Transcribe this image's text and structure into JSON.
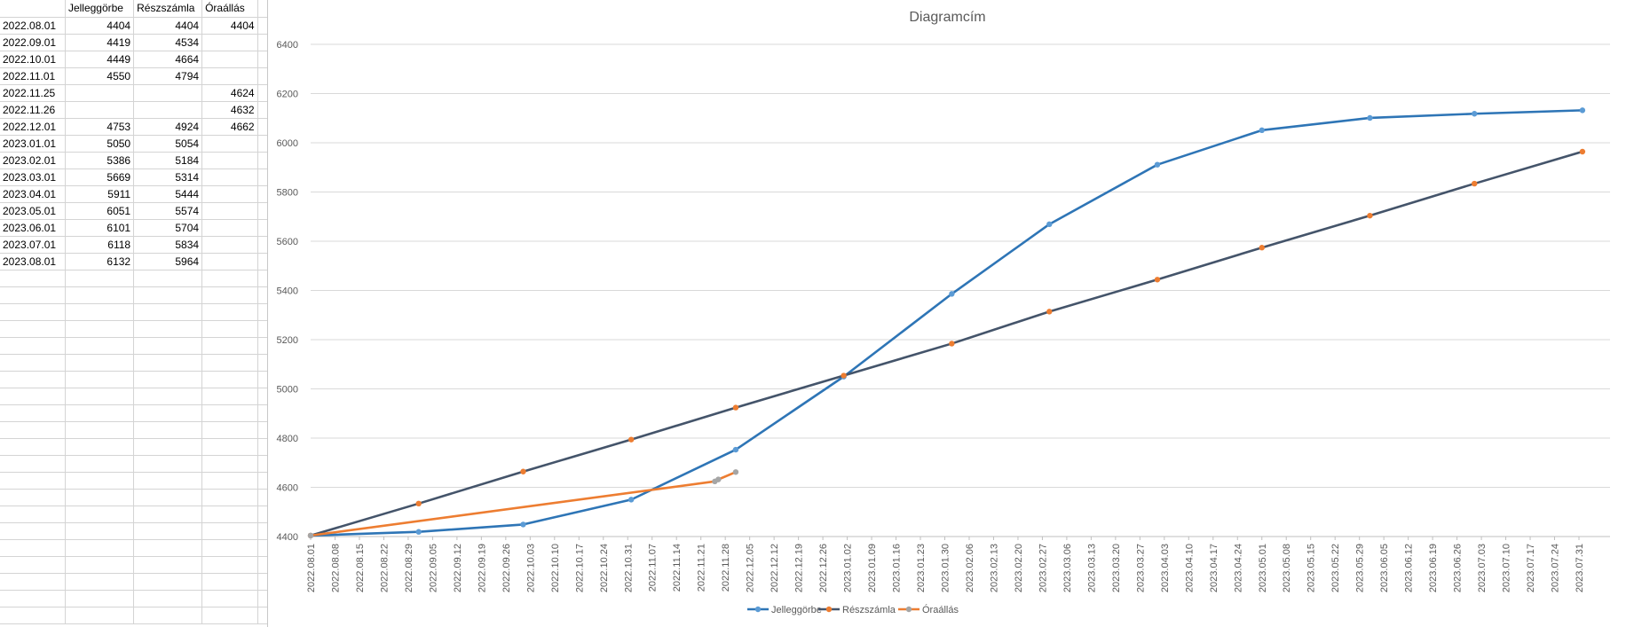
{
  "sheet": {
    "headers": [
      "",
      "Jelleggörbe",
      "Részszámla",
      "Óraállás"
    ],
    "rows": [
      [
        "2022.08.01",
        "4404",
        "4404",
        "4404"
      ],
      [
        "2022.09.01",
        "4419",
        "4534",
        ""
      ],
      [
        "2022.10.01",
        "4449",
        "4664",
        ""
      ],
      [
        "2022.11.01",
        "4550",
        "4794",
        ""
      ],
      [
        "2022.11.25",
        "",
        "",
        "4624"
      ],
      [
        "2022.11.26",
        "",
        "",
        "4632"
      ],
      [
        "2022.12.01",
        "4753",
        "4924",
        "4662"
      ],
      [
        "2023.01.01",
        "5050",
        "5054",
        ""
      ],
      [
        "2023.02.01",
        "5386",
        "5184",
        ""
      ],
      [
        "2023.03.01",
        "5669",
        "5314",
        ""
      ],
      [
        "2023.04.01",
        "5911",
        "5444",
        ""
      ],
      [
        "2023.05.01",
        "6051",
        "5574",
        ""
      ],
      [
        "2023.06.01",
        "6101",
        "5704",
        ""
      ],
      [
        "2023.07.01",
        "6118",
        "5834",
        ""
      ],
      [
        "2023.08.01",
        "6132",
        "5964",
        ""
      ]
    ]
  },
  "chart_data": {
    "type": "line",
    "title": "Diagramcím",
    "xlabel": "",
    "ylabel": "",
    "ylim": [
      4400,
      6400
    ],
    "yticks": [
      4400,
      4600,
      4800,
      5000,
      5200,
      5400,
      5600,
      5800,
      6000,
      6200,
      6400
    ],
    "xlim": [
      "2022.08.01",
      "2023.07.31"
    ],
    "xtick_step_days": 7,
    "grid": "horizontal",
    "legend": "bottom",
    "series": [
      {
        "name": "Jelleggörbe",
        "line_color": "#2e75b6",
        "marker_color": "#5b9bd5",
        "x": [
          "2022.08.01",
          "2022.09.01",
          "2022.10.01",
          "2022.11.01",
          "2022.12.01",
          "2023.01.01",
          "2023.02.01",
          "2023.03.01",
          "2023.04.01",
          "2023.05.01",
          "2023.06.01",
          "2023.07.01",
          "2023.08.01"
        ],
        "values": [
          4404,
          4419,
          4449,
          4550,
          4753,
          5050,
          5386,
          5669,
          5911,
          6051,
          6101,
          6118,
          6132
        ]
      },
      {
        "name": "Részszámla",
        "line_color": "#44546a",
        "marker_color": "#ed7d31",
        "x": [
          "2022.08.01",
          "2022.09.01",
          "2022.10.01",
          "2022.11.01",
          "2022.12.01",
          "2023.01.01",
          "2023.02.01",
          "2023.03.01",
          "2023.04.01",
          "2023.05.01",
          "2023.06.01",
          "2023.07.01",
          "2023.08.01"
        ],
        "values": [
          4404,
          4534,
          4664,
          4794,
          4924,
          5054,
          5184,
          5314,
          5444,
          5574,
          5704,
          5834,
          5964
        ]
      },
      {
        "name": "Óraállás",
        "line_color": "#ed7d31",
        "marker_color": "#a5a5a5",
        "x": [
          "2022.08.01",
          "2022.11.25",
          "2022.11.26",
          "2022.12.01"
        ],
        "values": [
          4404,
          4624,
          4632,
          4662
        ]
      }
    ]
  }
}
